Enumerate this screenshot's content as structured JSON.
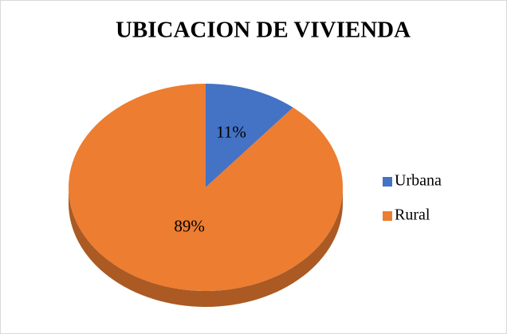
{
  "chart_data": {
    "type": "pie",
    "title": "UBICACION DE VIVIENDA",
    "categories": [
      "Urbana",
      "Rural"
    ],
    "values": [
      11,
      89
    ],
    "value_labels": [
      "11%",
      "89%"
    ],
    "colors": [
      "#4472c4",
      "#ed7d31"
    ],
    "legend": "right"
  }
}
